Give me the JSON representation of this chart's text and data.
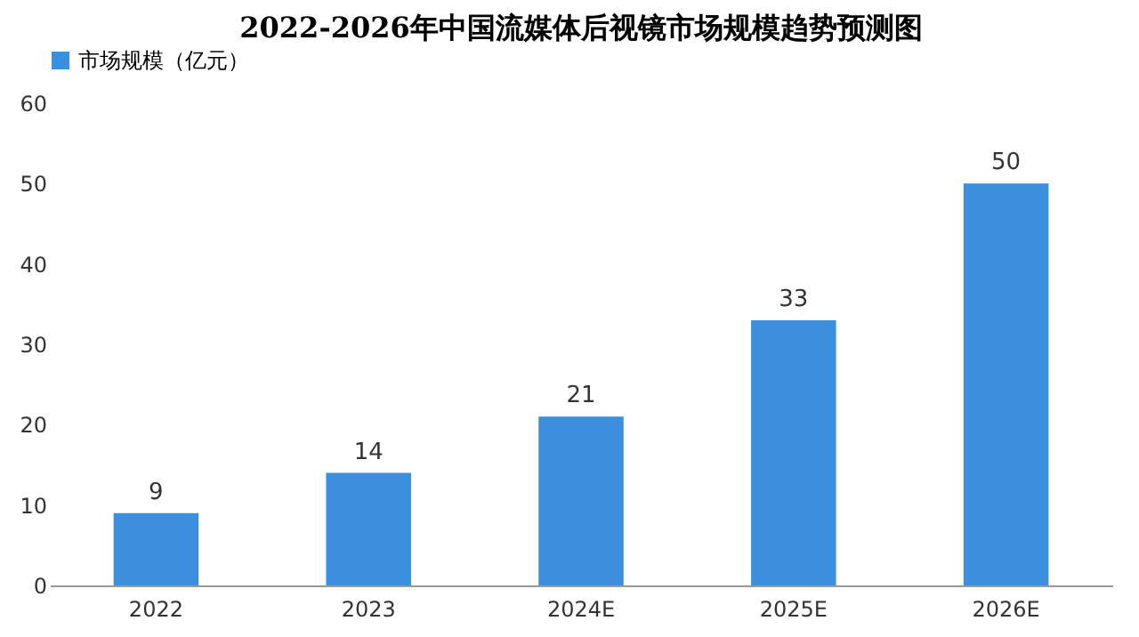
{
  "chart_data": {
    "type": "bar",
    "title": "2022-2026年中国流媒体后视镜市场规模趋势预测图",
    "categories": [
      "2022",
      "2023",
      "2024E",
      "2025E",
      "2026E"
    ],
    "series": [
      {
        "name": "市场规模（亿元）",
        "color": "#3b8fdc",
        "values": [
          9,
          14,
          21,
          33,
          50
        ]
      }
    ],
    "ylim": [
      0,
      60
    ],
    "yticks": [
      0,
      10,
      20,
      30,
      40,
      50,
      60
    ],
    "grid": false,
    "legend": "top",
    "data_labels": true
  }
}
